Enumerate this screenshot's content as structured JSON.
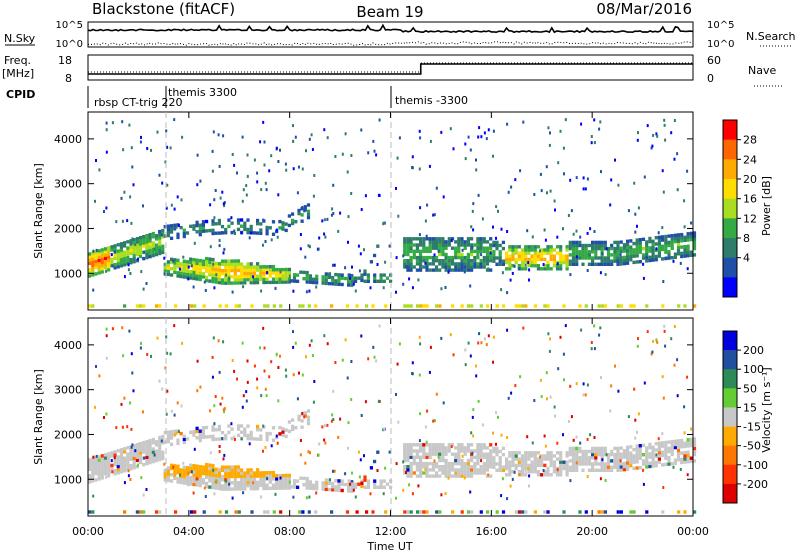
{
  "header": {
    "station": "Blackstone (fitACF)",
    "beam": "Beam 19",
    "date": "08/Mar/2016"
  },
  "noise_panel": {
    "left_label": "N.Sky",
    "right_label": "N.Search",
    "left_ticks": [
      "10^5",
      "10^0"
    ],
    "right_ticks": [
      "10^5",
      "10^0"
    ]
  },
  "freq_panel": {
    "left_label_top": "Freq.",
    "left_label_bottom": "[MHz]",
    "right_label": "Nave",
    "left_ticks": [
      "18",
      "8"
    ],
    "right_ticks": [
      "60",
      "0"
    ]
  },
  "cpid_panel": {
    "label": "CPID",
    "segments": [
      "rbsp CT-trig 220",
      "themis 3300",
      "themis -3300"
    ],
    "segment_start_hours": [
      0,
      3.0,
      12.0
    ]
  },
  "chart_data": [
    {
      "type": "heatmap",
      "ylabel": "Slant Range [km]",
      "ylim": [
        180,
        4600
      ],
      "yticks": [
        "1000",
        "2000",
        "3000",
        "4000"
      ],
      "yticks_km": [
        1000,
        2000,
        3000,
        4000
      ],
      "xlim_hours": [
        0,
        24
      ],
      "colorbar": {
        "label": "Power [dB]",
        "tick_labels": [
          "28",
          "24",
          "20",
          "16",
          "12",
          "8",
          "4"
        ],
        "bands": [
          "#ff0000",
          "#ff6600",
          "#ffaa00",
          "#ffdd00",
          "#aadd22",
          "#33aa44",
          "#2e7d6b",
          "#1f4fa8",
          "#0000ff"
        ]
      }
    },
    {
      "type": "heatmap",
      "ylabel": "Slant Range [km]",
      "ylim": [
        180,
        4600
      ],
      "yticks": [
        "1000",
        "2000",
        "3000",
        "4000"
      ],
      "yticks_km": [
        1000,
        2000,
        3000,
        4000
      ],
      "xlim_hours": [
        0,
        24
      ],
      "colorbar": {
        "label": "Velocity [m s⁻¹]",
        "tick_labels": [
          "200",
          "100",
          "50",
          "15",
          "-15",
          "-50",
          "-100",
          "-200"
        ],
        "bands": [
          "#0000dd",
          "#2050a0",
          "#2e8b57",
          "#66cc33",
          "#c8c8c8",
          "#ffaa00",
          "#ff7700",
          "#ff3300",
          "#dd0000"
        ]
      }
    }
  ],
  "xaxis": {
    "label": "Time UT",
    "ticks": [
      "00:00",
      "04:00",
      "08:00",
      "12:00",
      "16:00",
      "20:00",
      "00:00"
    ],
    "tick_hours": [
      0,
      4,
      8,
      12,
      16,
      20,
      24
    ]
  }
}
